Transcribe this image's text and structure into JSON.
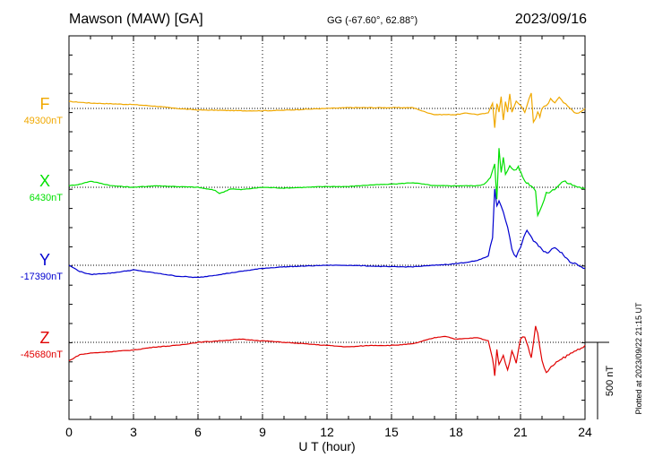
{
  "header": {
    "station": "Mawson (MAW)  [GA]",
    "coords": "GG (-67.60°,  62.88°)",
    "date": "2023/09/16"
  },
  "footer": {
    "xlabel": "U T (hour)",
    "scale_label": "500 nT",
    "plotted": "Plotted at 2023/09/22 21:15 UT"
  },
  "colors": {
    "F": "#f0a800",
    "X": "#00e000",
    "Y": "#0000d0",
    "Z": "#e00000"
  },
  "chart_data": {
    "type": "line",
    "title": "Mawson (MAW)  [GA]",
    "subtitle": "GG (-67.60°,  62.88°)",
    "date": "2023/09/16",
    "xlabel": "U T (hour)",
    "xlim": [
      0,
      24
    ],
    "xticks": [
      "0",
      "3",
      "6",
      "9",
      "12",
      "15",
      "18",
      "21",
      "24"
    ],
    "grid": true,
    "scale_bar_nT": 500,
    "scale_label": "500 nT",
    "series": [
      {
        "name": "F",
        "baseline_label": "49300nT",
        "baseline_nT": 49300,
        "x": [
          0,
          0.5,
          1,
          2,
          3,
          4,
          5,
          6,
          7,
          8,
          9,
          10,
          11,
          12,
          13,
          14,
          15,
          16,
          16.5,
          17,
          18,
          18.5,
          19,
          19.5,
          19.7,
          19.8,
          19.9,
          20,
          20.1,
          20.2,
          20.3,
          20.4,
          20.5,
          20.6,
          20.8,
          21,
          21.2,
          21.4,
          21.5,
          21.6,
          21.7,
          21.8,
          21.9,
          22,
          22.2,
          22.4,
          22.6,
          22.8,
          23,
          23.2,
          23.4,
          23.6,
          23.8,
          24
        ],
        "values": [
          45,
          40,
          35,
          30,
          25,
          15,
          0,
          -10,
          -12,
          -15,
          -15,
          -12,
          -5,
          0,
          5,
          5,
          5,
          5,
          -20,
          -40,
          -40,
          -30,
          -40,
          -30,
          40,
          -120,
          30,
          -20,
          80,
          -80,
          40,
          -20,
          100,
          -30,
          50,
          20,
          -20,
          60,
          100,
          -90,
          -60,
          -20,
          -60,
          0,
          20,
          60,
          40,
          80,
          40,
          10,
          -10,
          -30,
          -20,
          0
        ]
      },
      {
        "name": "X",
        "baseline_label": "6430nT",
        "baseline_nT": 6430,
        "x": [
          0,
          0.5,
          1,
          2,
          3,
          4,
          5,
          6,
          6.8,
          7,
          7.2,
          7.5,
          8,
          9,
          10,
          11,
          12,
          13,
          14,
          15,
          16,
          16.5,
          17,
          18,
          19,
          19.3,
          19.6,
          19.8,
          19.9,
          20,
          20.1,
          20.2,
          20.3,
          20.5,
          20.7,
          20.9,
          21,
          21.2,
          21.5,
          21.7,
          21.8,
          22,
          22.2,
          22.5,
          23,
          23.5,
          24
        ],
        "values": [
          10,
          20,
          40,
          10,
          0,
          10,
          5,
          0,
          -20,
          -40,
          -30,
          -10,
          -15,
          0,
          -5,
          0,
          5,
          5,
          15,
          20,
          30,
          20,
          10,
          10,
          10,
          20,
          60,
          150,
          -80,
          250,
          100,
          200,
          80,
          140,
          110,
          130,
          100,
          40,
          10,
          -20,
          -180,
          -120,
          -40,
          -20,
          40,
          10,
          -10
        ]
      },
      {
        "name": "Y",
        "baseline_label": "-17390nT",
        "baseline_nT": -17390,
        "x": [
          0,
          0.5,
          1,
          2,
          3,
          4,
          5,
          6,
          7,
          8,
          9,
          10,
          11,
          12,
          13,
          14,
          15,
          16,
          17,
          18,
          18.5,
          19,
          19.5,
          19.7,
          19.8,
          19.9,
          20,
          20.2,
          20.4,
          20.6,
          20.8,
          21,
          21.3,
          21.6,
          22,
          22.3,
          22.6,
          23,
          23.3,
          23.6,
          24
        ],
        "values": [
          0,
          -40,
          -60,
          -50,
          -30,
          -50,
          -70,
          -80,
          -60,
          -40,
          -20,
          -10,
          -5,
          0,
          0,
          -5,
          -10,
          -10,
          0,
          10,
          20,
          30,
          60,
          180,
          500,
          380,
          420,
          350,
          250,
          100,
          50,
          120,
          230,
          160,
          100,
          80,
          120,
          70,
          20,
          10,
          -20
        ]
      },
      {
        "name": "Z",
        "baseline_label": "-45680nT",
        "baseline_nT": -45680,
        "x": [
          0,
          0.5,
          1,
          2,
          3,
          4,
          5,
          6,
          7,
          8,
          9,
          10,
          11,
          12,
          13,
          14,
          15,
          16,
          16.5,
          17,
          17.5,
          18,
          19,
          19.5,
          19.7,
          19.8,
          19.9,
          20,
          20.2,
          20.4,
          20.6,
          20.8,
          21,
          21.2,
          21.5,
          21.7,
          21.8,
          22,
          22.2,
          22.5,
          23,
          23.5,
          24
        ],
        "values": [
          -120,
          -80,
          -70,
          -60,
          -50,
          -30,
          -20,
          0,
          10,
          20,
          10,
          0,
          -10,
          -20,
          -30,
          -20,
          -20,
          -10,
          10,
          30,
          40,
          20,
          30,
          10,
          -100,
          -220,
          -40,
          -150,
          -80,
          -180,
          -60,
          -130,
          20,
          40,
          -100,
          100,
          60,
          -120,
          -200,
          -150,
          -100,
          -60,
          -20
        ]
      }
    ]
  }
}
